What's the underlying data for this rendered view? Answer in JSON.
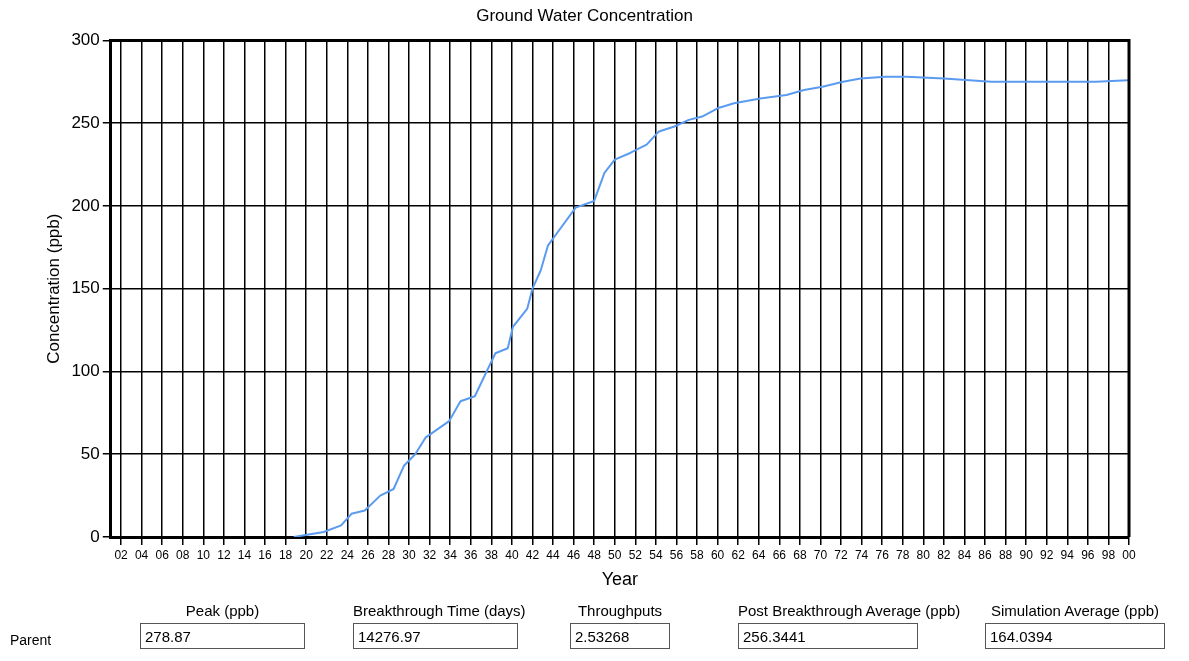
{
  "chart_data": {
    "type": "line",
    "title": "Ground Water Concentration",
    "xlabel": "Year",
    "ylabel": "Concentration (ppb)",
    "xlim": [
      2001,
      2100
    ],
    "ylim": [
      0,
      300
    ],
    "yticks": [
      0,
      50,
      100,
      150,
      200,
      250,
      300
    ],
    "xticks": [
      {
        "value": 2002,
        "label": "02"
      },
      {
        "value": 2004,
        "label": "04"
      },
      {
        "value": 2006,
        "label": "06"
      },
      {
        "value": 2008,
        "label": "08"
      },
      {
        "value": 2010,
        "label": "10"
      },
      {
        "value": 2012,
        "label": "12"
      },
      {
        "value": 2014,
        "label": "14"
      },
      {
        "value": 2016,
        "label": "16"
      },
      {
        "value": 2018,
        "label": "18"
      },
      {
        "value": 2020,
        "label": "20"
      },
      {
        "value": 2022,
        "label": "22"
      },
      {
        "value": 2024,
        "label": "24"
      },
      {
        "value": 2026,
        "label": "26"
      },
      {
        "value": 2028,
        "label": "28"
      },
      {
        "value": 2030,
        "label": "30"
      },
      {
        "value": 2032,
        "label": "32"
      },
      {
        "value": 2034,
        "label": "34"
      },
      {
        "value": 2036,
        "label": "36"
      },
      {
        "value": 2038,
        "label": "38"
      },
      {
        "value": 2040,
        "label": "40"
      },
      {
        "value": 2042,
        "label": "42"
      },
      {
        "value": 2044,
        "label": "44"
      },
      {
        "value": 2046,
        "label": "46"
      },
      {
        "value": 2048,
        "label": "48"
      },
      {
        "value": 2050,
        "label": "50"
      },
      {
        "value": 2052,
        "label": "52"
      },
      {
        "value": 2054,
        "label": "54"
      },
      {
        "value": 2056,
        "label": "56"
      },
      {
        "value": 2058,
        "label": "58"
      },
      {
        "value": 2060,
        "label": "60"
      },
      {
        "value": 2062,
        "label": "62"
      },
      {
        "value": 2064,
        "label": "64"
      },
      {
        "value": 2066,
        "label": "66"
      },
      {
        "value": 2068,
        "label": "68"
      },
      {
        "value": 2070,
        "label": "70"
      },
      {
        "value": 2072,
        "label": "72"
      },
      {
        "value": 2074,
        "label": "74"
      },
      {
        "value": 2076,
        "label": "76"
      },
      {
        "value": 2078,
        "label": "78"
      },
      {
        "value": 2080,
        "label": "80"
      },
      {
        "value": 2082,
        "label": "82"
      },
      {
        "value": 2084,
        "label": "84"
      },
      {
        "value": 2086,
        "label": "86"
      },
      {
        "value": 2088,
        "label": "88"
      },
      {
        "value": 2090,
        "label": "90"
      },
      {
        "value": 2092,
        "label": "92"
      },
      {
        "value": 2094,
        "label": "94"
      },
      {
        "value": 2096,
        "label": "96"
      },
      {
        "value": 2098,
        "label": "98"
      },
      {
        "value": 2100,
        "label": "00"
      }
    ],
    "grid": true,
    "marker": "none",
    "line_style": "solid",
    "series": [
      {
        "color": "#5b9bef",
        "x": [
          2018.8,
          2021.7,
          2023.4,
          2024.4,
          2025.7,
          2027.2,
          2028.5,
          2029.5,
          2030.6,
          2031.6,
          2033.9,
          2035,
          2036.4,
          2037.7,
          2038.4,
          2039.6,
          2040.1,
          2041.5,
          2042,
          2042.8,
          2043.5,
          2044.2,
          2046.2,
          2048,
          2049,
          2050,
          2051.5,
          2053.1,
          2054.3,
          2055.8,
          2057.2,
          2058.5,
          2060,
          2061.6,
          2064.3,
          2066.7,
          2068.4,
          2070.2,
          2072.2,
          2073.9,
          2076.3,
          2078.4,
          2082,
          2086.6,
          2089.9,
          2093.3,
          2096.8,
          2099.9
        ],
        "values": [
          0,
          3,
          7,
          14,
          16,
          25,
          29,
          43,
          50,
          60,
          70,
          82,
          85,
          102,
          111,
          114,
          127,
          138,
          150,
          161,
          176,
          182,
          199,
          203,
          220,
          228,
          232,
          237,
          245,
          248,
          252,
          254,
          259,
          262,
          265,
          267,
          270,
          272,
          275,
          277,
          278,
          278,
          277,
          275,
          275,
          275,
          275,
          276
        ]
      }
    ],
    "annotations": [
      "Parent",
      "Peak (ppb)",
      "278.87",
      "Breakthrough Time (days)",
      "14276.97",
      "Throughputs",
      "2.53268",
      "Post Breakthrough Average (ppb)",
      "256.3441",
      "Simulation Average (ppb)",
      "164.0394"
    ]
  }
}
